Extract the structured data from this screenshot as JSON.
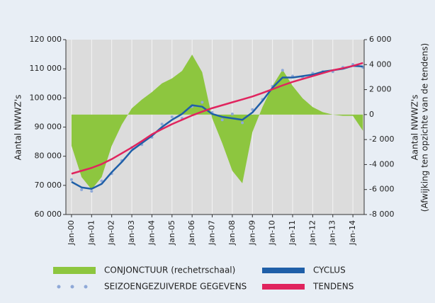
{
  "chart_data": {
    "type": "line",
    "ylabel": "Aantal NWWZ's",
    "y2label": [
      "Aantal NWWZ's",
      "(Afwijking ten opzichte van de tendens)"
    ],
    "x": [
      2000,
      2000.5,
      2001,
      2001.5,
      2002,
      2002.5,
      2003,
      2003.5,
      2004,
      2004.5,
      2005,
      2005.5,
      2006,
      2006.5,
      2007,
      2007.5,
      2008,
      2008.5,
      2009,
      2009.5,
      2010,
      2010.5,
      2011,
      2011.5,
      2012,
      2012.5,
      2013,
      2013.5,
      2014,
      2014.5
    ],
    "xlim": [
      1999.72,
      2014.56
    ],
    "xticks": [
      {
        "value": 2000,
        "label": "Jan-00"
      },
      {
        "value": 2001,
        "label": "Jan-01"
      },
      {
        "value": 2002,
        "label": "Jan-02"
      },
      {
        "value": 2003,
        "label": "Jan-03"
      },
      {
        "value": 2004,
        "label": "Jan-04"
      },
      {
        "value": 2005,
        "label": "Jan-05"
      },
      {
        "value": 2006,
        "label": "Jan-06"
      },
      {
        "value": 2007,
        "label": "Jan-07"
      },
      {
        "value": 2008,
        "label": "Jan-08"
      },
      {
        "value": 2009,
        "label": "Jan-09"
      },
      {
        "value": 2010,
        "label": "Jan-10"
      },
      {
        "value": 2011,
        "label": "Jan-11"
      },
      {
        "value": 2012,
        "label": "Jan-12"
      },
      {
        "value": 2013,
        "label": "Jan-13"
      },
      {
        "value": 2014,
        "label": "Jan-14"
      }
    ],
    "ylim": [
      60000,
      120000
    ],
    "yticks": [
      {
        "value": 60000,
        "label": "60 000"
      },
      {
        "value": 70000,
        "label": "70 000"
      },
      {
        "value": 80000,
        "label": "80 000"
      },
      {
        "value": 90000,
        "label": "90 000"
      },
      {
        "value": 100000,
        "label": "100 000"
      },
      {
        "value": 110000,
        "label": "110 000"
      },
      {
        "value": 120000,
        "label": "120 000"
      }
    ],
    "y2lim": [
      -8000,
      6000
    ],
    "y2ticks": [
      {
        "value": -8000,
        "label": "-8 000"
      },
      {
        "value": -6000,
        "label": "-6 000"
      },
      {
        "value": -4000,
        "label": "-4 000"
      },
      {
        "value": -2000,
        "label": "-2 000"
      },
      0,
      {
        "value": 2000,
        "label": "2 000"
      },
      {
        "value": 4000,
        "label": "4 000"
      },
      {
        "value": 6000,
        "label": "6 000"
      }
    ],
    "grid": true,
    "series": [
      {
        "name": "CONJONCTUUR (rechetrschaal)",
        "type": "area",
        "axis": "y2",
        "color": "#8dc63f",
        "values": [
          -2500,
          -5000,
          -6000,
          -5000,
          -2500,
          -800,
          500,
          1200,
          1800,
          2500,
          2900,
          3500,
          4800,
          3400,
          -300,
          -2300,
          -4500,
          -5500,
          -1400,
          600,
          2300,
          3600,
          2300,
          1300,
          600,
          200,
          0,
          -100,
          -100,
          -1300
        ]
      },
      {
        "name": "SEIZOENGEZUIVERDE GEGEVENS",
        "type": "scatter",
        "color": "#8fa9d8",
        "values": [
          72000,
          68500,
          68000,
          71500,
          74000,
          78500,
          83000,
          84000,
          86500,
          91000,
          93500,
          93000,
          97000,
          98500,
          95000,
          92500,
          94500,
          91500,
          96000,
          99500,
          104000,
          109500,
          107500,
          107000,
          108500,
          109000,
          109000,
          110500,
          111500,
          110500
        ]
      },
      {
        "name": "CYCLUS",
        "type": "line",
        "color": "#1f5fa8",
        "values": [
          71200,
          69300,
          68800,
          70500,
          74500,
          78000,
          82000,
          84500,
          87000,
          90000,
          92500,
          94500,
          97500,
          97000,
          94500,
          93500,
          93000,
          92500,
          95000,
          99000,
          103500,
          107000,
          107000,
          107500,
          108000,
          109000,
          109500,
          110000,
          111000,
          110800
        ]
      },
      {
        "name": "TENDENS",
        "type": "line",
        "color": "#e0245e",
        "values": [
          74000,
          75000,
          76000,
          77300,
          79000,
          81000,
          83000,
          85200,
          87500,
          89300,
          91000,
          92500,
          94000,
          95300,
          96500,
          97500,
          98500,
          99500,
          100500,
          101700,
          103000,
          104300,
          105500,
          106500,
          107500,
          108500,
          109500,
          110200,
          111000,
          112000
        ]
      }
    ]
  }
}
